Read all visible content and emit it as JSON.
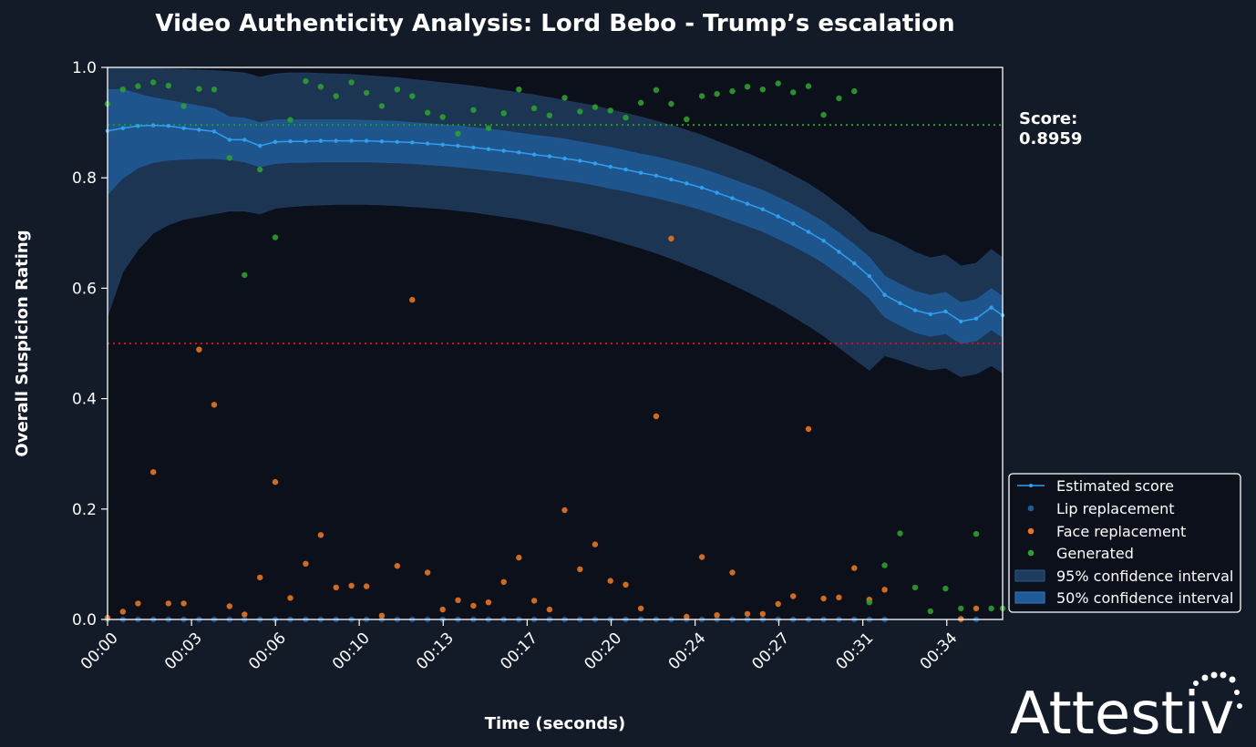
{
  "chart_data": {
    "type": "line",
    "title": "Video Authenticity Analysis: Lord Bebo - Trump’s escalation",
    "xlabel": "Time (seconds)",
    "ylabel": "Overall Suspicion Rating",
    "xlim": [
      0,
      35.6
    ],
    "ylim": [
      0,
      1.0
    ],
    "x_tick_values": [
      0,
      3.34,
      6.68,
      10.01,
      13.35,
      16.69,
      20.03,
      23.37,
      26.7,
      30.04,
      33.38
    ],
    "x_tick_labels": [
      "00:00",
      "00:03",
      "00:06",
      "00:10",
      "00:13",
      "00:17",
      "00:20",
      "00:24",
      "00:27",
      "00:31",
      "00:34"
    ],
    "y_ticks": [
      0.0,
      0.2,
      0.4,
      0.6,
      0.8,
      1.0
    ],
    "y_tick_labels": [
      "0.0",
      "0.2",
      "0.4",
      "0.6",
      "0.8",
      "1.0"
    ],
    "threshold_lines": [
      {
        "y": 0.8959,
        "color": "#1f9e1f",
        "style": "dotted"
      },
      {
        "y": 0.5,
        "color": "#d0111b",
        "style": "dotted"
      }
    ],
    "score_label": "Score:",
    "score_value": "0.8959",
    "series": [
      {
        "name": "Estimated score",
        "color": "#2f9ff0",
        "x": [
          0,
          0.61,
          1.21,
          1.82,
          2.42,
          3.03,
          3.64,
          4.24,
          4.85,
          5.45,
          6.06,
          6.67,
          7.27,
          7.88,
          8.48,
          9.09,
          9.7,
          10.3,
          10.91,
          11.52,
          12.12,
          12.73,
          13.33,
          13.94,
          14.55,
          15.15,
          15.76,
          16.36,
          16.97,
          17.58,
          18.18,
          18.79,
          19.39,
          20.0,
          20.61,
          21.21,
          21.82,
          22.42,
          23.03,
          23.64,
          24.24,
          24.85,
          25.45,
          26.06,
          26.67,
          27.27,
          27.88,
          28.48,
          29.09,
          29.7,
          30.3,
          30.91,
          31.52,
          32.12,
          32.73,
          33.33,
          33.94,
          34.55,
          35.15,
          35.6
        ],
        "values": [
          0.885,
          0.89,
          0.894,
          0.895,
          0.894,
          0.89,
          0.887,
          0.884,
          0.869,
          0.869,
          0.858,
          0.865,
          0.866,
          0.866,
          0.867,
          0.867,
          0.867,
          0.867,
          0.866,
          0.865,
          0.864,
          0.862,
          0.86,
          0.858,
          0.855,
          0.852,
          0.849,
          0.846,
          0.842,
          0.839,
          0.835,
          0.831,
          0.826,
          0.82,
          0.815,
          0.809,
          0.804,
          0.797,
          0.79,
          0.782,
          0.773,
          0.763,
          0.753,
          0.743,
          0.73,
          0.717,
          0.702,
          0.686,
          0.666,
          0.645,
          0.622,
          0.588,
          0.573,
          0.56,
          0.553,
          0.558,
          0.54,
          0.545,
          0.565,
          0.551
        ]
      },
      {
        "name": "Lip replacement",
        "color": "#1f5a96",
        "x": [
          0,
          0.61,
          1.21,
          1.82,
          2.42,
          3.03,
          3.64,
          4.24,
          4.85,
          5.45,
          6.06,
          6.67,
          7.27,
          7.88,
          8.48,
          9.09,
          9.7,
          10.3,
          10.91,
          11.52,
          12.12,
          12.73,
          13.33,
          13.94,
          14.55,
          15.15,
          15.76,
          16.36,
          16.97,
          17.58,
          18.18,
          18.79,
          19.39,
          20.0,
          20.61,
          21.21,
          21.82,
          22.42,
          23.03,
          23.64,
          24.24,
          24.85,
          25.45,
          26.06,
          26.67,
          27.27,
          27.88,
          28.48,
          29.09,
          29.7,
          30.3,
          30.91,
          33.94,
          34.55
        ],
        "values": [
          0,
          0,
          0,
          0,
          0,
          0,
          0,
          0,
          0,
          0,
          0,
          0,
          0,
          0,
          0,
          0,
          0,
          0,
          0,
          0,
          0,
          0,
          0,
          0,
          0,
          0,
          0,
          0,
          0,
          0,
          0,
          0,
          0,
          0,
          0,
          0,
          0,
          0,
          0,
          0,
          0,
          0,
          0,
          0,
          0,
          0,
          0,
          0,
          0,
          0,
          0,
          0,
          0,
          0
        ]
      },
      {
        "name": "Face replacement",
        "color": "#e8751f",
        "x": [
          0,
          0.61,
          1.21,
          1.82,
          2.42,
          3.03,
          3.64,
          4.24,
          4.85,
          5.45,
          6.06,
          6.67,
          7.27,
          7.88,
          8.48,
          9.09,
          9.7,
          10.3,
          10.91,
          11.52,
          12.12,
          12.73,
          13.33,
          13.94,
          14.55,
          15.15,
          15.76,
          16.36,
          16.97,
          17.58,
          18.18,
          18.79,
          19.39,
          20.0,
          20.61,
          21.21,
          21.82,
          22.42,
          23.03,
          23.64,
          24.24,
          24.85,
          25.45,
          26.06,
          26.67,
          27.27,
          27.88,
          28.48,
          29.09,
          29.7,
          30.3,
          30.91,
          33.94,
          34.55
        ],
        "values": [
          0.003,
          0.014,
          0.029,
          0.267,
          0.029,
          0.029,
          0.489,
          0.389,
          0.024,
          0.009,
          0.076,
          0.249,
          0.039,
          0.101,
          0.153,
          0.058,
          0.061,
          0.06,
          0.007,
          0.097,
          0.579,
          0.085,
          0.018,
          0.035,
          0.025,
          0.031,
          0.068,
          0.112,
          0.034,
          0.018,
          0.198,
          0.091,
          0.136,
          0.07,
          0.063,
          0.02,
          0.368,
          0.69,
          0.005,
          0.113,
          0.008,
          0.085,
          0.01,
          0.01,
          0.028,
          0.042,
          0.345,
          0.038,
          0.04,
          0.093,
          0.036,
          0.054,
          0.001,
          0.02
        ]
      },
      {
        "name": "Generated",
        "color": "#2ca02c",
        "x": [
          0,
          0.61,
          1.21,
          1.82,
          2.42,
          3.03,
          3.64,
          4.24,
          4.85,
          5.45,
          6.06,
          6.67,
          7.27,
          7.88,
          8.48,
          9.09,
          9.7,
          10.3,
          10.91,
          11.52,
          12.12,
          12.73,
          13.33,
          13.94,
          14.55,
          15.15,
          15.76,
          16.36,
          16.97,
          17.58,
          18.18,
          18.79,
          19.39,
          20.0,
          20.61,
          21.21,
          21.82,
          22.42,
          23.03,
          23.64,
          24.24,
          24.85,
          25.45,
          26.06,
          26.67,
          27.27,
          27.88,
          28.48,
          29.09,
          29.7,
          30.3,
          30.91,
          31.52,
          32.12,
          32.73,
          33.33,
          33.94,
          34.55,
          35.15,
          35.6
        ],
        "values": [
          0.934,
          0.96,
          0.966,
          0.973,
          0.967,
          0.93,
          0.961,
          0.96,
          0.836,
          0.624,
          0.815,
          0.692,
          0.905,
          0.975,
          0.965,
          0.948,
          0.973,
          0.954,
          0.93,
          0.96,
          0.948,
          0.918,
          0.91,
          0.88,
          0.923,
          0.89,
          0.917,
          0.96,
          0.926,
          0.913,
          0.945,
          0.92,
          0.928,
          0.922,
          0.909,
          0.936,
          0.959,
          0.934,
          0.906,
          0.948,
          0.952,
          0.957,
          0.965,
          0.96,
          0.971,
          0.955,
          0.966,
          0.914,
          0.944,
          0.957,
          0.031,
          0.098,
          0.156,
          0.058,
          0.015,
          0.056,
          0.02,
          0.155,
          0.02,
          0.02
        ]
      }
    ],
    "ci95": {
      "name": "95% confidence interval",
      "color": "#1f3c5e",
      "upper": [
        1.01,
        1.005,
        1.0,
        0.998,
        0.997,
        0.996,
        0.995,
        0.994,
        0.992,
        0.99,
        0.982,
        0.988,
        0.99,
        0.99,
        0.989,
        0.988,
        0.987,
        0.985,
        0.983,
        0.981,
        0.978,
        0.975,
        0.972,
        0.969,
        0.966,
        0.962,
        0.958,
        0.954,
        0.95,
        0.945,
        0.94,
        0.935,
        0.93,
        0.923,
        0.917,
        0.91,
        0.903,
        0.895,
        0.886,
        0.877,
        0.866,
        0.855,
        0.844,
        0.832,
        0.818,
        0.804,
        0.789,
        0.771,
        0.75,
        0.728,
        0.703,
        0.693,
        0.68,
        0.665,
        0.655,
        0.66,
        0.64,
        0.645,
        0.67,
        0.655
      ],
      "lower": [
        0.55,
        0.63,
        0.67,
        0.7,
        0.715,
        0.725,
        0.73,
        0.735,
        0.74,
        0.74,
        0.735,
        0.745,
        0.748,
        0.75,
        0.751,
        0.752,
        0.752,
        0.752,
        0.751,
        0.75,
        0.748,
        0.746,
        0.744,
        0.741,
        0.738,
        0.734,
        0.73,
        0.726,
        0.721,
        0.716,
        0.71,
        0.704,
        0.697,
        0.689,
        0.681,
        0.673,
        0.664,
        0.654,
        0.643,
        0.632,
        0.62,
        0.607,
        0.594,
        0.58,
        0.565,
        0.549,
        0.532,
        0.514,
        0.493,
        0.472,
        0.452,
        0.478,
        0.47,
        0.46,
        0.452,
        0.456,
        0.44,
        0.445,
        0.46,
        0.447
      ]
    },
    "ci50": {
      "name": "50% confidence interval",
      "color": "#1f5a96",
      "upper": [
        0.96,
        0.96,
        0.952,
        0.945,
        0.94,
        0.935,
        0.93,
        0.925,
        0.91,
        0.908,
        0.9,
        0.905,
        0.905,
        0.905,
        0.905,
        0.905,
        0.905,
        0.904,
        0.903,
        0.902,
        0.9,
        0.898,
        0.896,
        0.894,
        0.891,
        0.888,
        0.885,
        0.881,
        0.877,
        0.874,
        0.87,
        0.865,
        0.86,
        0.855,
        0.849,
        0.843,
        0.838,
        0.831,
        0.824,
        0.816,
        0.807,
        0.797,
        0.787,
        0.777,
        0.764,
        0.751,
        0.736,
        0.72,
        0.7,
        0.679,
        0.656,
        0.622,
        0.607,
        0.594,
        0.587,
        0.592,
        0.574,
        0.579,
        0.599,
        0.585
      ],
      "lower": [
        0.77,
        0.8,
        0.818,
        0.828,
        0.832,
        0.834,
        0.835,
        0.835,
        0.833,
        0.829,
        0.82,
        0.826,
        0.828,
        0.828,
        0.829,
        0.829,
        0.829,
        0.829,
        0.828,
        0.827,
        0.826,
        0.824,
        0.822,
        0.82,
        0.817,
        0.814,
        0.811,
        0.808,
        0.804,
        0.8,
        0.796,
        0.792,
        0.787,
        0.781,
        0.776,
        0.77,
        0.764,
        0.757,
        0.75,
        0.742,
        0.733,
        0.723,
        0.713,
        0.703,
        0.69,
        0.677,
        0.662,
        0.646,
        0.626,
        0.605,
        0.582,
        0.548,
        0.533,
        0.52,
        0.513,
        0.518,
        0.5,
        0.505,
        0.525,
        0.511
      ]
    },
    "legend": {
      "placement": "bottom-right outside",
      "entries": [
        "Estimated score",
        "Lip replacement",
        "Face replacement",
        "Generated",
        "95% confidence interval",
        "50% confidence interval"
      ]
    },
    "grid": false
  },
  "branding": {
    "logo_text": "Attestiv"
  },
  "colors": {
    "background": "#131a28",
    "plot_background": "#0c101a",
    "axes": "#ffffff"
  }
}
